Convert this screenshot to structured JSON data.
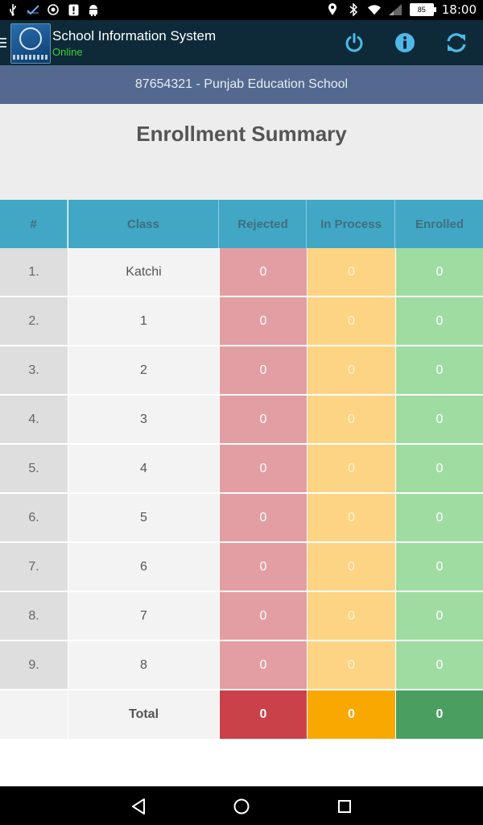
{
  "status_bar": {
    "time": "18:00",
    "battery_level": "85",
    "icons_left": [
      "usb-icon",
      "check-icon",
      "shield-icon",
      "notification-icon",
      "android-icon"
    ],
    "icons_right": [
      "location-icon",
      "bluetooth-icon",
      "wifi-icon",
      "signal-icon",
      "battery-icon"
    ]
  },
  "app_bar": {
    "title": "School Information System",
    "status": "Online",
    "actions": [
      "power-icon",
      "info-icon",
      "refresh-icon"
    ]
  },
  "school_banner": "87654321 - Punjab Education School",
  "page_title": "Enrollment Summary",
  "table": {
    "headers": {
      "num": "#",
      "class": "Class",
      "rejected": "Rejected",
      "in_process": "In Process",
      "enrolled": "Enrolled"
    },
    "rows": [
      {
        "num": "1.",
        "class": "Katchi",
        "rejected": "0",
        "in_process": "0",
        "enrolled": "0"
      },
      {
        "num": "2.",
        "class": "1",
        "rejected": "0",
        "in_process": "0",
        "enrolled": "0"
      },
      {
        "num": "3.",
        "class": "2",
        "rejected": "0",
        "in_process": "0",
        "enrolled": "0"
      },
      {
        "num": "4.",
        "class": "3",
        "rejected": "0",
        "in_process": "0",
        "enrolled": "0"
      },
      {
        "num": "5.",
        "class": "4",
        "rejected": "0",
        "in_process": "0",
        "enrolled": "0"
      },
      {
        "num": "6.",
        "class": "5",
        "rejected": "0",
        "in_process": "0",
        "enrolled": "0"
      },
      {
        "num": "7.",
        "class": "6",
        "rejected": "0",
        "in_process": "0",
        "enrolled": "0"
      },
      {
        "num": "8.",
        "class": "7",
        "rejected": "0",
        "in_process": "0",
        "enrolled": "0"
      },
      {
        "num": "9.",
        "class": "8",
        "rejected": "0",
        "in_process": "0",
        "enrolled": "0"
      }
    ],
    "total": {
      "num": "",
      "class": "Total",
      "rejected": "0",
      "in_process": "0",
      "enrolled": "0"
    }
  },
  "colors": {
    "app_bar": "#0e2a38",
    "banner": "#54698f",
    "header": "#41a7c5",
    "rejected": "#e39ea3",
    "in_process": "#fdd484",
    "enrolled": "#9fdca2",
    "total_rejected": "#cb4149",
    "total_in_process": "#f8a800",
    "total_enrolled": "#4a9f60",
    "online": "#3ad13a"
  },
  "nav_bar": [
    "back-icon",
    "home-icon",
    "recents-icon"
  ]
}
